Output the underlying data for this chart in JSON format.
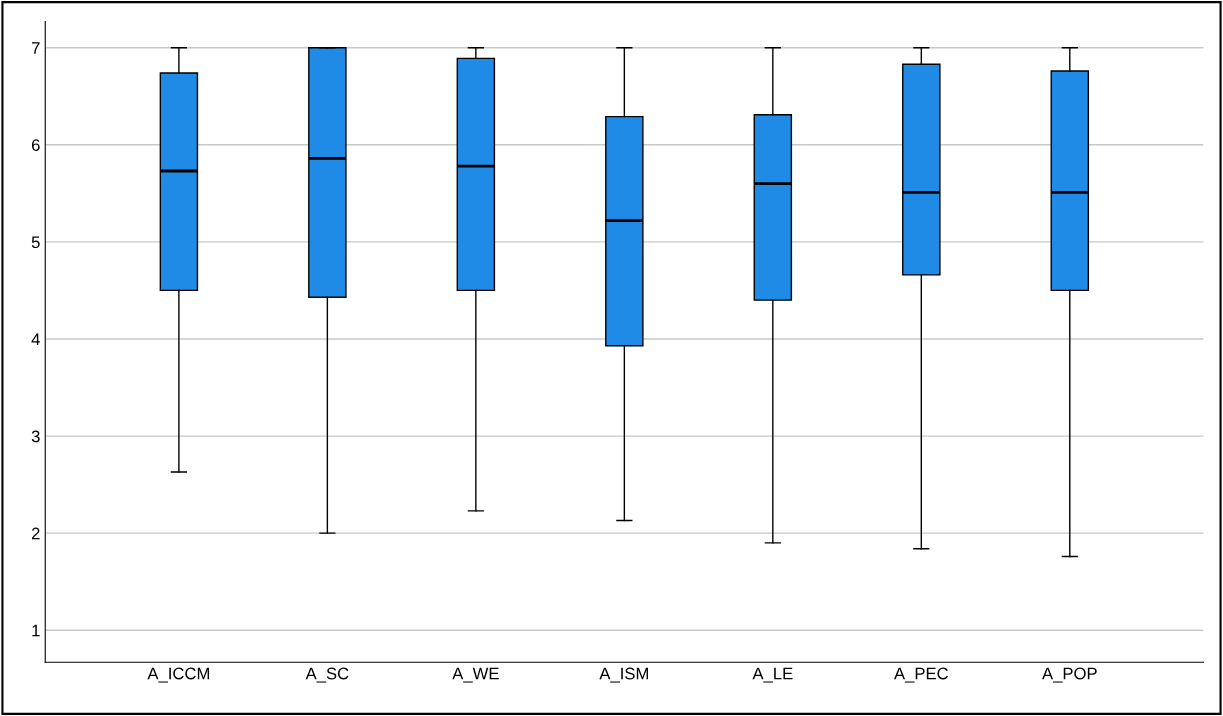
{
  "chart_data": {
    "type": "box",
    "categories": [
      "A_ICCM",
      "A_SC",
      "A_WE",
      "A_ISM",
      "A_LE",
      "A_PEC",
      "A_POP"
    ],
    "boxes": [
      {
        "low": 2.63,
        "q1": 4.5,
        "median": 5.73,
        "q3": 6.74,
        "high": 7
      },
      {
        "low": 2.0,
        "q1": 4.43,
        "median": 5.86,
        "q3": 7,
        "high": 7
      },
      {
        "low": 2.23,
        "q1": 4.5,
        "median": 5.78,
        "q3": 6.89,
        "high": 7
      },
      {
        "low": 2.13,
        "q1": 3.93,
        "median": 5.22,
        "q3": 6.29,
        "high": 7
      },
      {
        "low": 1.9,
        "q1": 4.4,
        "median": 5.6,
        "q3": 6.31,
        "high": 7
      },
      {
        "low": 1.84,
        "q1": 4.66,
        "median": 5.51,
        "q3": 6.83,
        "high": 7
      },
      {
        "low": 1.76,
        "q1": 4.5,
        "median": 5.51,
        "q3": 6.76,
        "high": 7
      }
    ],
    "color": "#1f8be6",
    "ylim": [
      0.67,
      7.27
    ],
    "yticks": [
      1,
      2,
      3,
      4,
      5,
      6,
      7
    ],
    "grid": "y"
  }
}
